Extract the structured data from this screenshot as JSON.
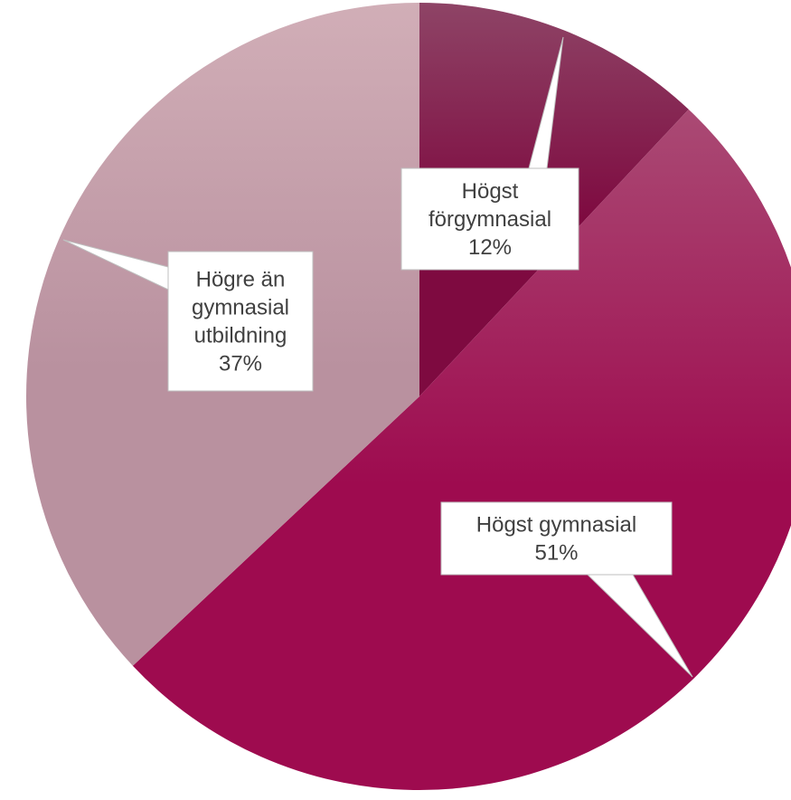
{
  "chart_data": {
    "type": "pie",
    "title": "",
    "slices": [
      {
        "name": "Högst förgymnasial",
        "label_lines": [
          "Högst",
          "förgymnasial",
          "12%"
        ],
        "value": 12,
        "color": "#7e0a40",
        "color_light": "#8e4466"
      },
      {
        "name": "Högst gymnasial",
        "label_lines": [
          "Högst gymnasial",
          "51%"
        ],
        "value": 51,
        "color": "#9e0b4f",
        "color_light": "#aa4a74"
      },
      {
        "name": "Högre än gymnasial utbildning",
        "label_lines": [
          "Högre än",
          "gymnasial",
          "utbildning",
          "37%"
        ],
        "value": 37,
        "color": "#b9919f",
        "color_light": "#d1aeb7"
      }
    ],
    "start_angle_deg": 0,
    "direction": "clockwise",
    "legend": "none",
    "data_labels": "callouts"
  }
}
